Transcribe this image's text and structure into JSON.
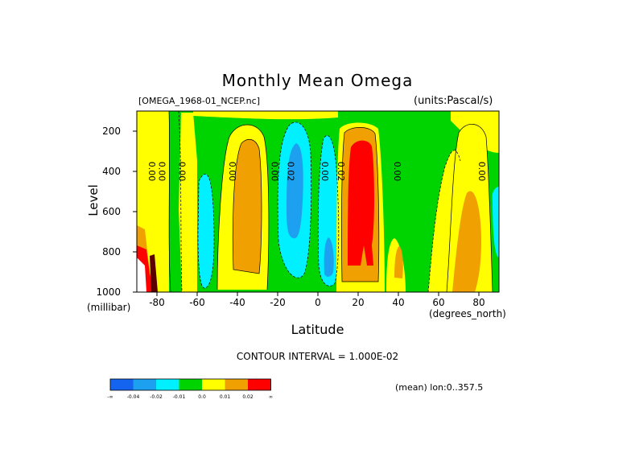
{
  "title": "Monthly Mean Omega",
  "subtitle_left": "[OMEGA_1968-01_NCEP.nc]",
  "subtitle_right": "(units:Pascal/s)",
  "ylabel": "Level",
  "ylabel_unit": "(millibar)",
  "xlabel": "Latitude",
  "xlabel_unit": "(degrees_north)",
  "contour_interval": "CONTOUR INTERVAL = 1.000E-02",
  "mean_note": "(mean) lon:0..357.5",
  "colors": {
    "lt_neg": "#1464f0",
    "neg_003": "#1ea0f0",
    "neg_002": "#00f0ff",
    "neg_001": "#00d400",
    "zero": "#ffff00",
    "pos_001": "#f0a000",
    "pos_002": "#ff0000",
    "gt_002": "#a00000",
    "max": "#5a0000"
  },
  "colorbar": {
    "labels": [
      "-∞",
      "-0.04",
      "-0.02",
      "-0.01",
      "0.0",
      "0.01",
      "0.02",
      "∞"
    ],
    "colors": [
      "#1464f0",
      "#1ea0f0",
      "#00f0ff",
      "#00d400",
      "#ffff00",
      "#f0a000",
      "#ff0000"
    ]
  },
  "chart_data": {
    "type": "heatmap",
    "title": "Monthly Mean Omega",
    "xlabel": "Latitude",
    "ylabel": "Level",
    "x_unit": "degrees_north",
    "y_unit": "millibar",
    "xlim": [
      -90,
      90
    ],
    "ylim": [
      1000,
      100
    ],
    "xticks": [
      -80,
      -60,
      -40,
      -20,
      0,
      20,
      40,
      60,
      80
    ],
    "yticks": [
      200,
      400,
      600,
      800,
      1000
    ],
    "contour_interval": 0.01,
    "contour_labels": [
      "0.00",
      "0.00",
      "0.00",
      "0.00",
      "0.00",
      "0.02",
      "0.00",
      "0.02",
      "0.00",
      "0.00"
    ],
    "latitude_bands": [
      {
        "lat_from": -90,
        "lat_to": -84,
        "level": 0.01
      },
      {
        "lat_from": -84,
        "lat_to": -69,
        "level": 0.0
      },
      {
        "lat_from": -69,
        "lat_to": -52,
        "level": -0.01
      },
      {
        "lat_from": -60,
        "lat_to": -55,
        "level": -0.02
      },
      {
        "lat_from": -52,
        "lat_to": -42,
        "level": 0.0
      },
      {
        "lat_from": -42,
        "lat_to": -28,
        "level": 0.01
      },
      {
        "lat_from": -28,
        "lat_to": -22,
        "level": 0.0
      },
      {
        "lat_from": -22,
        "lat_to": -17,
        "level": -0.01
      },
      {
        "lat_from": -17,
        "lat_to": -3,
        "level": -0.02
      },
      {
        "lat_from": -12,
        "lat_to": -8,
        "level": -0.04
      },
      {
        "lat_from": -3,
        "lat_to": 0,
        "level": -0.01
      },
      {
        "lat_from": 0,
        "lat_to": 11,
        "level": -0.02
      },
      {
        "lat_from": 4,
        "lat_to": 8,
        "level": -0.04
      },
      {
        "lat_from": 11,
        "lat_to": 15,
        "level": 0.0
      },
      {
        "lat_from": 15,
        "lat_to": 32,
        "level": 0.02
      },
      {
        "lat_from": 32,
        "lat_to": 40,
        "level": 0.0
      },
      {
        "lat_from": 40,
        "lat_to": 72,
        "level": -0.01
      },
      {
        "lat_from": 72,
        "lat_to": 84,
        "level": 0.01
      },
      {
        "lat_from": 84,
        "lat_to": 90,
        "level": -0.02
      }
    ],
    "max_value_location": {
      "lat": -82,
      "level_from": 750,
      "level_to": 1000,
      "level": 0.03
    }
  }
}
